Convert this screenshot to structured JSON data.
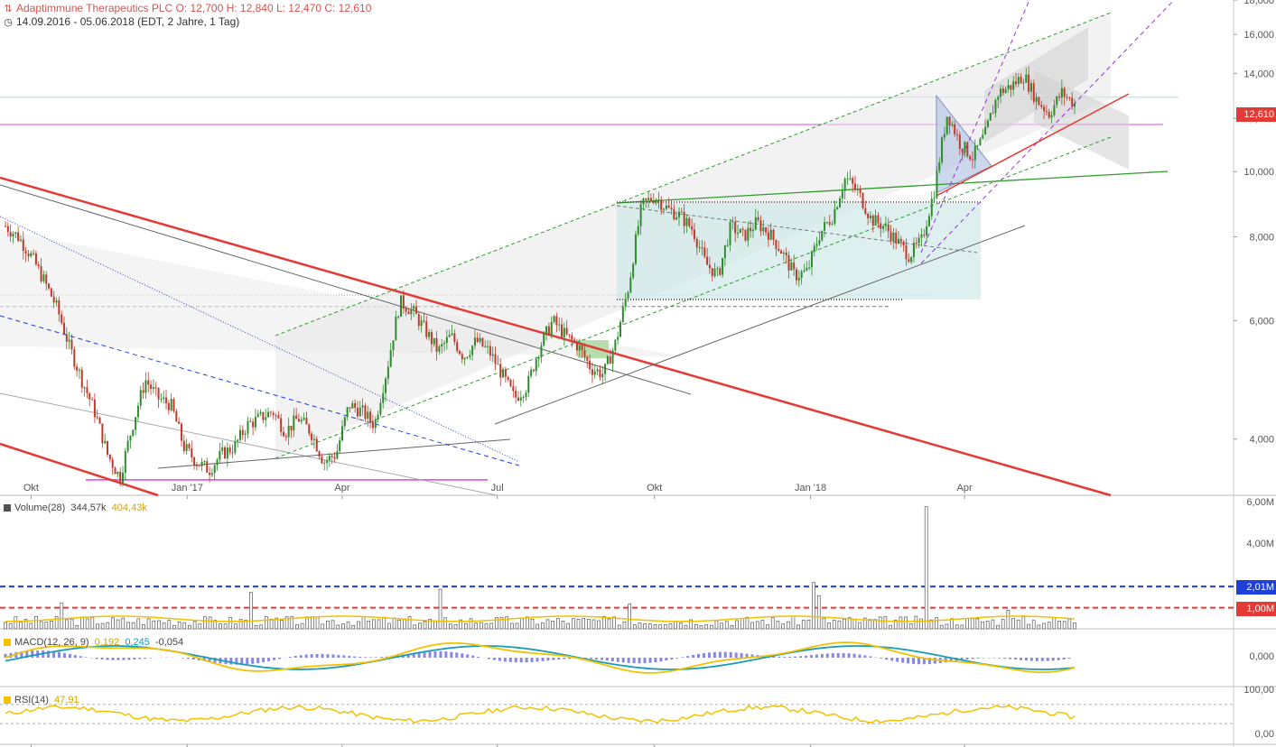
{
  "header": {
    "title_line": "Adaptimmune Therapeutics PLC   O: 12,700   H: 12,840   L: 12,470   C: 12,610",
    "range_line": "14.09.2016 - 05.06.2018   (EDT, 2 Jahre, 1 Tag)"
  },
  "colors": {
    "up": "#2e8b2e",
    "down": "#c0392b",
    "accent": "#e53935",
    "volume_blue": "#1e40d8",
    "signal": "#f2c200",
    "macd": "#1a9bb8"
  },
  "panels": {
    "volume": {
      "label": "Volume(28)",
      "value": "344,57k",
      "avg": "404,43k",
      "ticks": [
        "6,00M",
        "4,00M"
      ],
      "levels": [
        {
          "label": "2,01M",
          "value": 2.01
        },
        {
          "label": "1,00M",
          "value": 1.0
        }
      ]
    },
    "macd": {
      "label": "MACD(12, 26, 9)",
      "macd": "0,192",
      "signal": "0,245",
      "hist": "-0,054",
      "tick": "0,000"
    },
    "rsi": {
      "label": "RSI(14)",
      "value": "47,91",
      "ticks": [
        "100,00",
        "0,00"
      ]
    }
  },
  "last_price_tag": "12,610",
  "chart_data": {
    "type": "line",
    "title": "Adaptimmune Therapeutics PLC",
    "x_ticks": [
      "Okt",
      "Jan '17",
      "Apr",
      "Jul",
      "Okt",
      "Jan '18",
      "Apr"
    ],
    "y_ticks": [
      "18,000",
      "16,000",
      "14,000",
      "12,000",
      "10,000",
      "8,000",
      "6,000",
      "4,000"
    ],
    "ylim": [
      3.3,
      18
    ],
    "log_scale": true,
    "last": {
      "open": 12.7,
      "high": 12.84,
      "low": 12.47,
      "close": 12.61
    },
    "series": [
      {
        "values": [
          8.3,
          8.0,
          7.5,
          6.9,
          6.3,
          5.5,
          4.9,
          4.4,
          3.8,
          3.5,
          4.2,
          4.9,
          4.6,
          4.5,
          3.9,
          3.7,
          3.6,
          3.8,
          3.9,
          4.2,
          4.3,
          4.4,
          4.1,
          4.3,
          4.1,
          3.7,
          3.8,
          4.5,
          4.4,
          4.2,
          5.1,
          6.4,
          6.2,
          5.8,
          5.4,
          5.7,
          5.3,
          5.6,
          5.4,
          5.0,
          4.6,
          4.8,
          5.5,
          6.0,
          5.7,
          5.5,
          5.1,
          5.0,
          5.6,
          6.8,
          8.9,
          9.2,
          8.8,
          8.6,
          8.2,
          7.3,
          7.0,
          8.3,
          8.0,
          8.4,
          8.1,
          7.6,
          7.0,
          7.1,
          8.1,
          8.6,
          9.8,
          9.3,
          8.5,
          8.3,
          7.9,
          7.5,
          7.9,
          9.4,
          12.2,
          11.0,
          10.5,
          11.4,
          13.1,
          13.4,
          13.9,
          12.8,
          12.2,
          13.1,
          12.6
        ]
      }
    ]
  }
}
